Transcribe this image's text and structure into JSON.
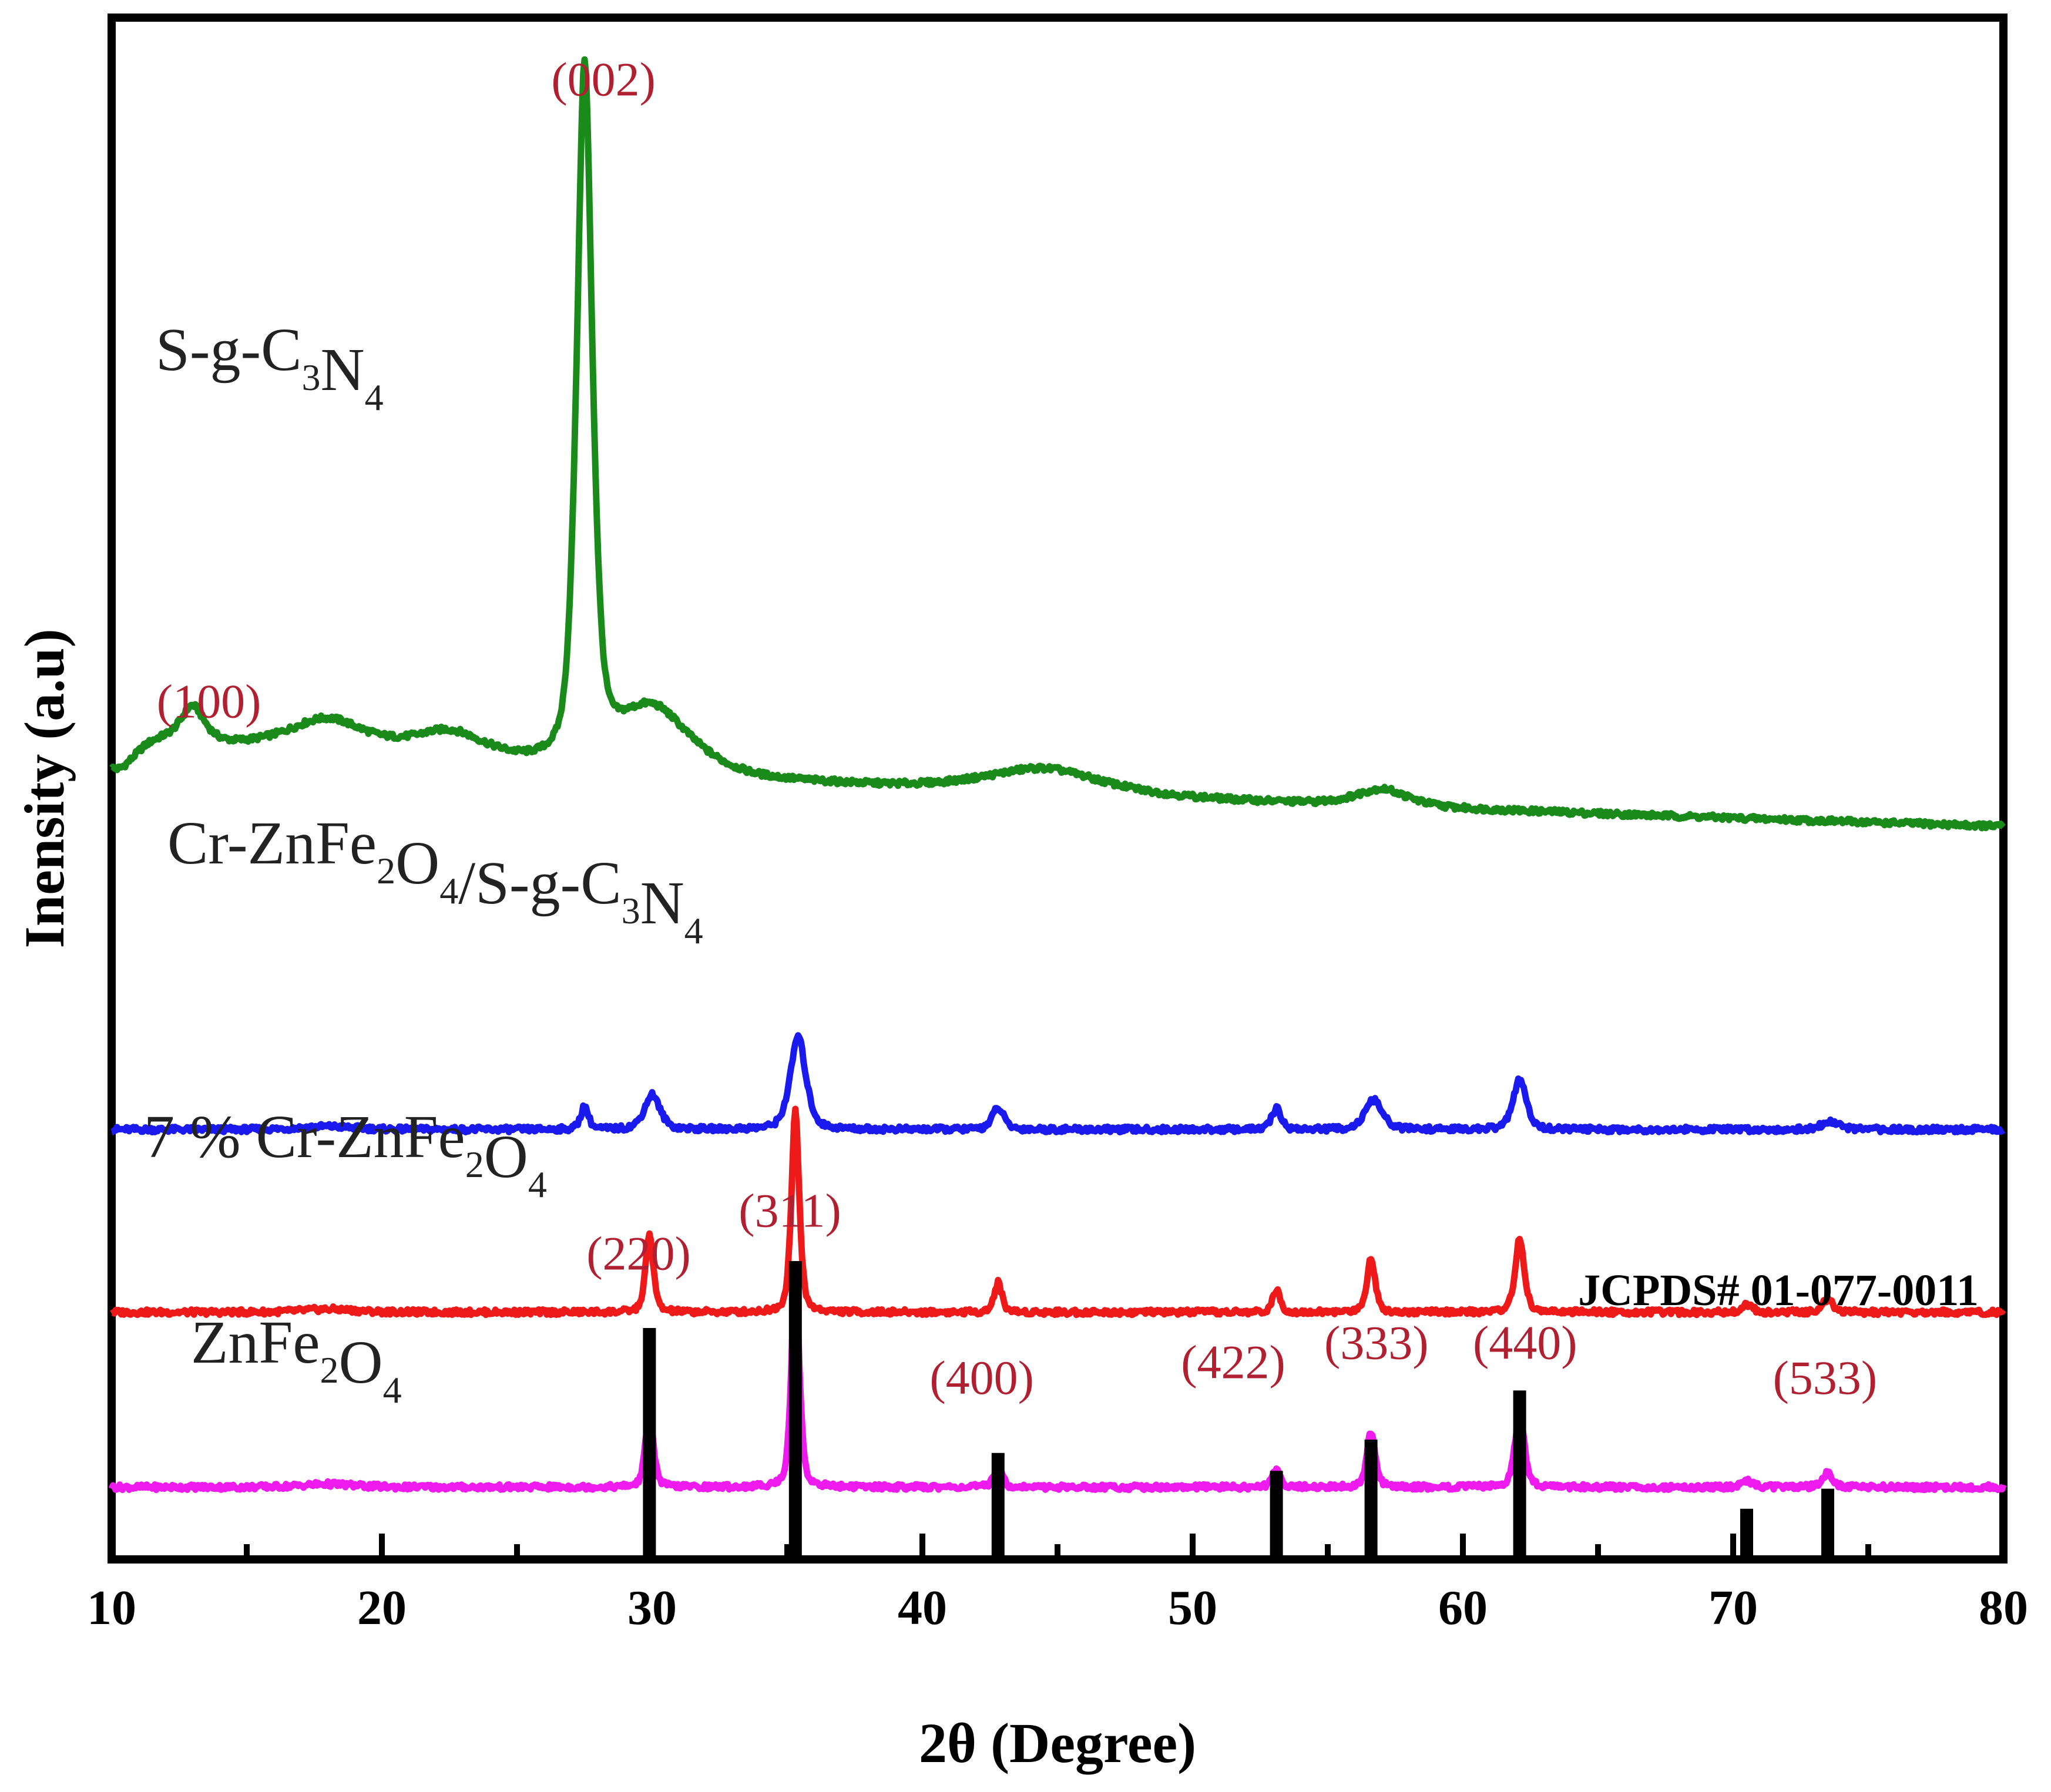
{
  "chart_data": {
    "type": "line",
    "xlabel": "2θ (Degree)",
    "ylabel": "Inensity (a.u)",
    "xlim": [
      10,
      80
    ],
    "x_ticks": [
      "10",
      "20",
      "30",
      "40",
      "50",
      "60",
      "70",
      "80"
    ],
    "grid": false,
    "series": [
      {
        "key": "sgcn",
        "label": {
          "parts": [
            {
              "t": "S-g-C"
            },
            {
              "t": "3",
              "sub": true
            },
            {
              "t": "N"
            },
            {
              "t": "4",
              "sub": true
            }
          ]
        },
        "color": "#1a8a1a",
        "baseline": 8.9,
        "peaks": [
          {
            "x": 13.0,
            "h": 0.45,
            "w": 0.9
          },
          {
            "x": 18.0,
            "h": 0.45,
            "w": 3.2
          },
          {
            "x": 22.5,
            "h": 0.38,
            "w": 3.0
          },
          {
            "x": 27.5,
            "h": 8.9,
            "w": 0.6
          },
          {
            "x": 30.0,
            "h": 0.85,
            "w": 3.0
          },
          {
            "x": 44.5,
            "h": 0.32,
            "w": 4.5
          },
          {
            "x": 57.0,
            "h": 0.22,
            "w": 2.0
          }
        ],
        "tail": {
          "x0": 10,
          "x1": 80,
          "y0": 1.3,
          "y1": 0.0
        }
      },
      {
        "key": "composite",
        "label": {
          "parts": [
            {
              "t": "Cr-ZnFe"
            },
            {
              "t": "2",
              "sub": true
            },
            {
              "t": "O"
            },
            {
              "t": "4",
              "sub": true
            },
            {
              "t": "/S-g-C"
            },
            {
              "t": "3",
              "sub": true
            },
            {
              "t": "N"
            },
            {
              "t": "4",
              "sub": true
            }
          ]
        },
        "color": "#1a1aee",
        "baseline": 5.0,
        "peaks": [
          {
            "x": 18.0,
            "h": 0.04,
            "w": 2.0
          },
          {
            "x": 27.5,
            "h": 0.3,
            "w": 0.3
          },
          {
            "x": 30.0,
            "h": 0.45,
            "w": 0.6
          },
          {
            "x": 35.4,
            "h": 1.2,
            "w": 0.6
          },
          {
            "x": 42.8,
            "h": 0.28,
            "w": 0.45
          },
          {
            "x": 53.1,
            "h": 0.28,
            "w": 0.35
          },
          {
            "x": 56.7,
            "h": 0.38,
            "w": 0.65
          },
          {
            "x": 62.1,
            "h": 0.65,
            "w": 0.5
          },
          {
            "x": 73.6,
            "h": 0.1,
            "w": 0.7
          }
        ],
        "tail": {
          "x0": 10,
          "x1": 80,
          "y0": 0.0,
          "y1": 0.0
        }
      },
      {
        "key": "crdoped",
        "label": {
          "parts": [
            {
              "t": "7 % Cr-ZnFe"
            },
            {
              "t": "2",
              "sub": true
            },
            {
              "t": "O"
            },
            {
              "t": "4",
              "sub": true
            }
          ]
        },
        "color": "#ee1a1a",
        "baseline": 2.65,
        "peaks": [
          {
            "x": 18.0,
            "h": 0.04,
            "w": 2.0
          },
          {
            "x": 29.9,
            "h": 1.0,
            "w": 0.3
          },
          {
            "x": 35.3,
            "h": 2.6,
            "w": 0.3
          },
          {
            "x": 42.8,
            "h": 0.38,
            "w": 0.3
          },
          {
            "x": 53.1,
            "h": 0.28,
            "w": 0.3
          },
          {
            "x": 56.6,
            "h": 0.7,
            "w": 0.32
          },
          {
            "x": 62.1,
            "h": 0.95,
            "w": 0.35
          },
          {
            "x": 70.5,
            "h": 0.1,
            "w": 0.4
          },
          {
            "x": 73.5,
            "h": 0.17,
            "w": 0.4
          }
        ],
        "tail": {
          "x0": 10,
          "x1": 80,
          "y0": 0.0,
          "y1": 0.0
        }
      },
      {
        "key": "znfe2o4",
        "label": {
          "parts": [
            {
              "t": "ZnFe"
            },
            {
              "t": "2",
              "sub": true
            },
            {
              "t": "O"
            },
            {
              "t": "4",
              "sub": true
            }
          ]
        },
        "color": "#ee1aee",
        "baseline": 0.4,
        "peaks": [
          {
            "x": 18.0,
            "h": 0.04,
            "w": 2.0
          },
          {
            "x": 29.9,
            "h": 1.0,
            "w": 0.3
          },
          {
            "x": 35.3,
            "h": 2.8,
            "w": 0.3
          },
          {
            "x": 42.8,
            "h": 0.3,
            "w": 0.3
          },
          {
            "x": 53.1,
            "h": 0.24,
            "w": 0.3
          },
          {
            "x": 56.6,
            "h": 0.72,
            "w": 0.32
          },
          {
            "x": 62.1,
            "h": 1.0,
            "w": 0.35
          },
          {
            "x": 70.5,
            "h": 0.09,
            "w": 0.4
          },
          {
            "x": 73.5,
            "h": 0.18,
            "w": 0.4
          }
        ],
        "tail": {
          "x0": 10,
          "x1": 80,
          "y0": 0.0,
          "y1": 0.0
        }
      }
    ],
    "miller_indices": [
      {
        "label": "(100)",
        "x": 13.6,
        "y": 10.3
      },
      {
        "label": "(002)",
        "x": 28.2,
        "y": 18.3
      },
      {
        "label": "(311)",
        "x": 35.1,
        "y": 3.75
      },
      {
        "label": "(220)",
        "x": 29.5,
        "y": 3.2
      },
      {
        "label": "(400)",
        "x": 42.2,
        "y": 1.6
      },
      {
        "label": "(422)",
        "x": 51.5,
        "y": 1.8
      },
      {
        "label": "(333)",
        "x": 56.8,
        "y": 2.05
      },
      {
        "label": "(440)",
        "x": 62.3,
        "y": 2.05
      },
      {
        "label": "(533)",
        "x": 73.4,
        "y": 1.6
      }
    ],
    "reference": {
      "label": "JCPDS# 01-077-0011",
      "sticks": [
        {
          "x": 29.9,
          "h": 1.0
        },
        {
          "x": 35.3,
          "h": 1.3
        },
        {
          "x": 42.8,
          "h": 0.44
        },
        {
          "x": 53.1,
          "h": 0.36
        },
        {
          "x": 56.6,
          "h": 0.5
        },
        {
          "x": 62.1,
          "h": 0.72
        },
        {
          "x": 70.5,
          "h": 0.19
        },
        {
          "x": 73.5,
          "h": 0.28
        }
      ]
    },
    "label_color": "#b02030"
  }
}
